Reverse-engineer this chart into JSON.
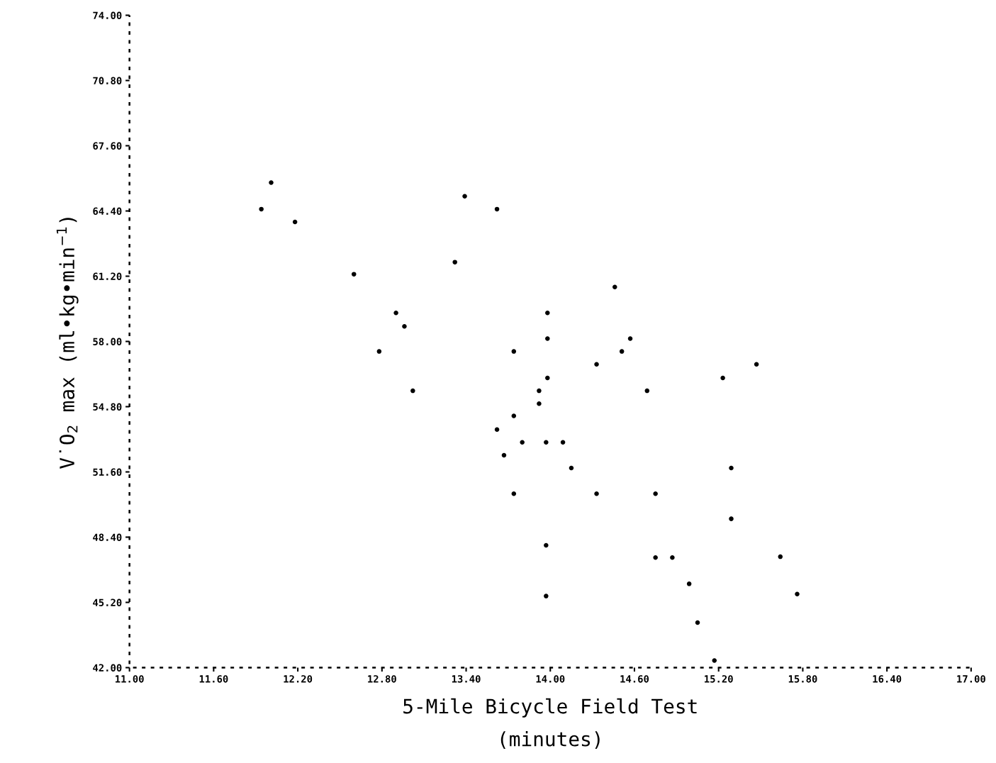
{
  "chart_data": {
    "type": "scatter",
    "xlabel": "5-Mile Bicycle Field Test\n(minutes)",
    "ylabel": "V̇O$_{2}$ max (ml•kg•min$^{−1}$)",
    "x": [
      11.94,
      12.01,
      12.18,
      12.6,
      12.9,
      12.96,
      12.78,
      13.02,
      13.32,
      13.39,
      13.62,
      13.74,
      13.62,
      13.74,
      13.67,
      13.8,
      13.74,
      13.92,
      13.92,
      13.98,
      13.98,
      13.98,
      13.97,
      14.09,
      14.15,
      13.97,
      13.97,
      14.33,
      14.33,
      14.46,
      14.51,
      14.57,
      14.69,
      14.75,
      14.75,
      14.87,
      14.99,
      15.05,
      15.17,
      15.23,
      15.29,
      15.29,
      15.47,
      15.64,
      15.76
    ],
    "values": [
      64.49,
      65.79,
      63.86,
      61.3,
      59.4,
      58.74,
      57.51,
      55.58,
      61.89,
      65.12,
      64.49,
      57.51,
      53.68,
      54.35,
      52.42,
      53.05,
      50.53,
      55.58,
      54.95,
      59.4,
      58.14,
      56.21,
      53.05,
      53.05,
      51.79,
      48.0,
      45.51,
      56.88,
      50.53,
      60.67,
      57.51,
      58.14,
      55.58,
      50.53,
      47.4,
      47.4,
      46.11,
      44.21,
      42.35,
      56.21,
      51.79,
      49.3,
      56.88,
      47.44,
      45.61
    ],
    "color": "#000000",
    "marker": "circle",
    "grid": false,
    "legend": false,
    "xlim": [
      11.0,
      17.0
    ],
    "ylim": [
      42.0,
      74.0
    ],
    "xticks": [
      {
        "value": 11.0,
        "label": "11.00"
      },
      {
        "value": 11.6,
        "label": "11.60"
      },
      {
        "value": 12.2,
        "label": "12.20"
      },
      {
        "value": 12.8,
        "label": "12.80"
      },
      {
        "value": 13.4,
        "label": "13.40"
      },
      {
        "value": 14.0,
        "label": "14.00"
      },
      {
        "value": 14.6,
        "label": "14.60"
      },
      {
        "value": 15.2,
        "label": "15.20"
      },
      {
        "value": 15.8,
        "label": "15.80"
      },
      {
        "value": 16.4,
        "label": "16.40"
      },
      {
        "value": 17.0,
        "label": "17.00"
      }
    ],
    "yticks": [
      {
        "value": 42.0,
        "label": "42.00"
      },
      {
        "value": 45.2,
        "label": "45.20"
      },
      {
        "value": 48.4,
        "label": "48.40"
      },
      {
        "value": 51.6,
        "label": "51.60"
      },
      {
        "value": 54.8,
        "label": "54.80"
      },
      {
        "value": 58.0,
        "label": "58.00"
      },
      {
        "value": 61.2,
        "label": "61.20"
      },
      {
        "value": 64.4,
        "label": "64.40"
      },
      {
        "value": 67.6,
        "label": "67.60"
      },
      {
        "value": 70.8,
        "label": "70.80"
      },
      {
        "value": 74.0,
        "label": "74.00"
      }
    ]
  }
}
